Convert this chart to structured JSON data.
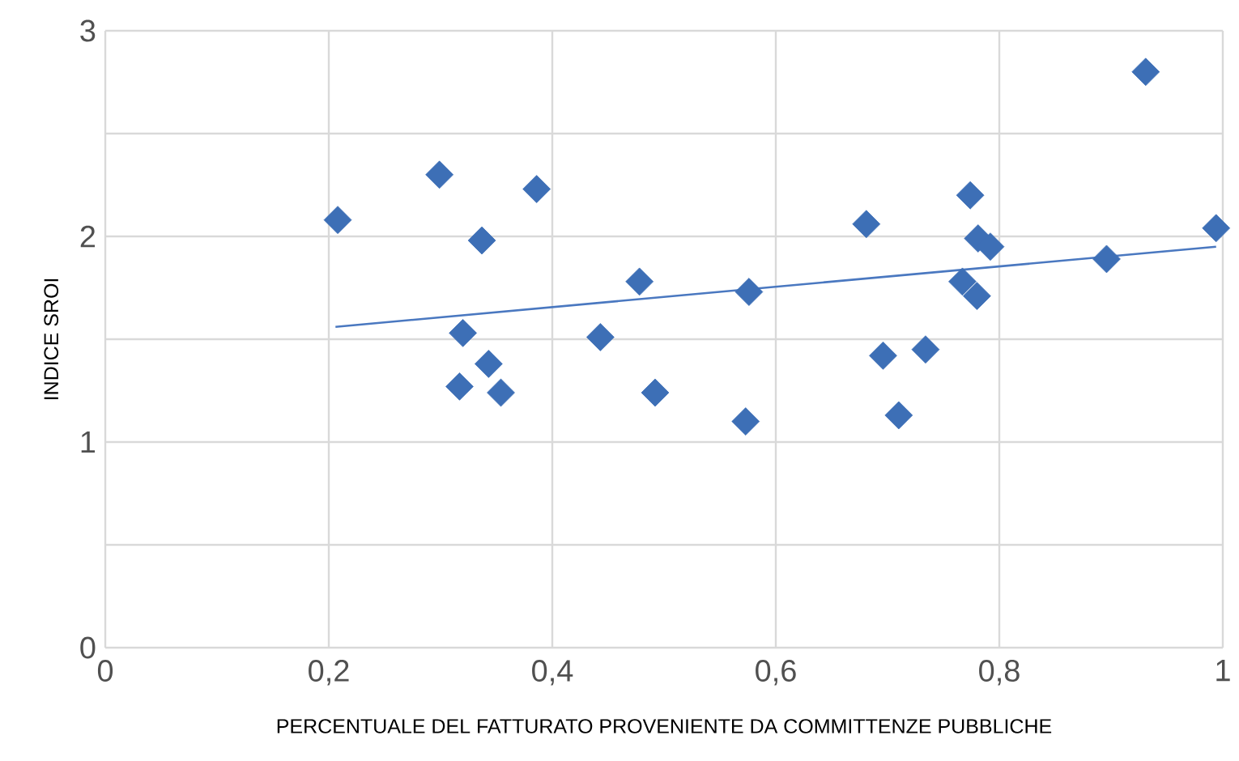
{
  "chart_data": {
    "type": "scatter",
    "xlabel": "PERCENTUALE DEL FATTURATO PROVENIENTE DA COMMITTENZE PUBBLICHE",
    "ylabel": "INDICE SROI",
    "xlim": [
      0,
      1
    ],
    "ylim": [
      0,
      3
    ],
    "xticks": [
      0,
      {
        "value": 0.2,
        "label": "0,2"
      },
      {
        "value": 0.4,
        "label": "0,4"
      },
      {
        "value": 0.6,
        "label": "0,6"
      },
      {
        "value": 0.8,
        "label": "0,8"
      },
      1
    ],
    "yticks": [
      0,
      {
        "value": 0.5,
        "label": null
      },
      1,
      {
        "value": 1.5,
        "label": null
      },
      2,
      {
        "value": 2.5,
        "label": null
      },
      3
    ],
    "grid": true,
    "marker": "diamond",
    "series": [
      {
        "color": "#3d6fb6",
        "x": [
          0.208,
          0.299,
          0.386,
          0.337,
          0.32,
          0.317,
          0.343,
          0.354,
          0.443,
          0.478,
          0.492,
          0.576,
          0.573,
          0.681,
          0.696,
          0.734,
          0.71,
          0.774,
          0.781,
          0.792,
          0.767,
          0.78,
          0.896,
          0.931,
          0.994
        ],
        "values": [
          2.08,
          2.3,
          2.23,
          1.98,
          1.53,
          1.27,
          1.38,
          1.24,
          1.51,
          1.78,
          1.24,
          1.73,
          1.1,
          2.06,
          1.42,
          1.45,
          1.13,
          2.2,
          1.99,
          1.95,
          1.78,
          1.71,
          1.89,
          2.8,
          2.04
        ]
      },
      {
        "type": "line",
        "marker": "none",
        "color": "#4a78c0",
        "x": [
          0.206,
          0.994
        ],
        "values": [
          1.56,
          1.95
        ]
      }
    ]
  }
}
